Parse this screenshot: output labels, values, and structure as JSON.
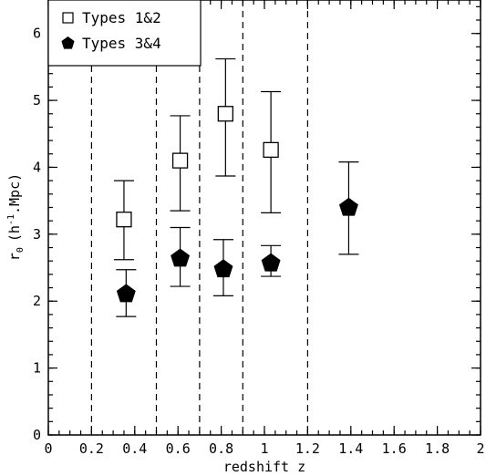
{
  "chart_data": {
    "type": "scatter",
    "xlabel": "redshift z",
    "ylabel_main": "r",
    "ylabel_sub": "0",
    "ylabel_paren_open": "(h",
    "ylabel_sup": "-1",
    "ylabel_rest": ".Mpc)",
    "xlim": [
      0,
      2
    ],
    "ylim": [
      0,
      6.5
    ],
    "x_ticks": [
      0,
      0.2,
      0.4,
      0.6,
      0.8,
      1,
      1.2,
      1.4,
      1.6,
      1.8,
      2
    ],
    "x_tick_labels": [
      "0",
      "0.2",
      "0.4",
      "0.6",
      "0.8",
      "1",
      "1.2",
      "1.4",
      "1.6",
      "1.8",
      "2"
    ],
    "y_ticks": [
      0,
      1,
      2,
      3,
      4,
      5,
      6
    ],
    "y_tick_labels": [
      "0",
      "1",
      "2",
      "3",
      "4",
      "5",
      "6"
    ],
    "bin_edges": [
      0.2,
      0.5,
      0.7,
      0.9,
      1.2
    ],
    "legend_position": "top-left",
    "series": [
      {
        "name": "Types 1&2",
        "marker": "open-square",
        "points": [
          {
            "x": 0.35,
            "y": 3.22,
            "ylo": 2.62,
            "yhi": 3.8
          },
          {
            "x": 0.61,
            "y": 4.1,
            "ylo": 3.35,
            "yhi": 4.77
          },
          {
            "x": 0.82,
            "y": 4.8,
            "ylo": 3.87,
            "yhi": 5.62
          },
          {
            "x": 1.03,
            "y": 4.26,
            "ylo": 3.32,
            "yhi": 5.13
          }
        ]
      },
      {
        "name": "Types 3&4",
        "marker": "filled-pentagon",
        "points": [
          {
            "x": 0.36,
            "y": 2.12,
            "ylo": 1.77,
            "yhi": 2.47
          },
          {
            "x": 0.61,
            "y": 2.65,
            "ylo": 2.22,
            "yhi": 3.1
          },
          {
            "x": 0.81,
            "y": 2.49,
            "ylo": 2.08,
            "yhi": 2.92
          },
          {
            "x": 1.03,
            "y": 2.58,
            "ylo": 2.37,
            "yhi": 2.83
          },
          {
            "x": 1.39,
            "y": 3.41,
            "ylo": 2.7,
            "yhi": 4.08
          }
        ]
      }
    ]
  }
}
